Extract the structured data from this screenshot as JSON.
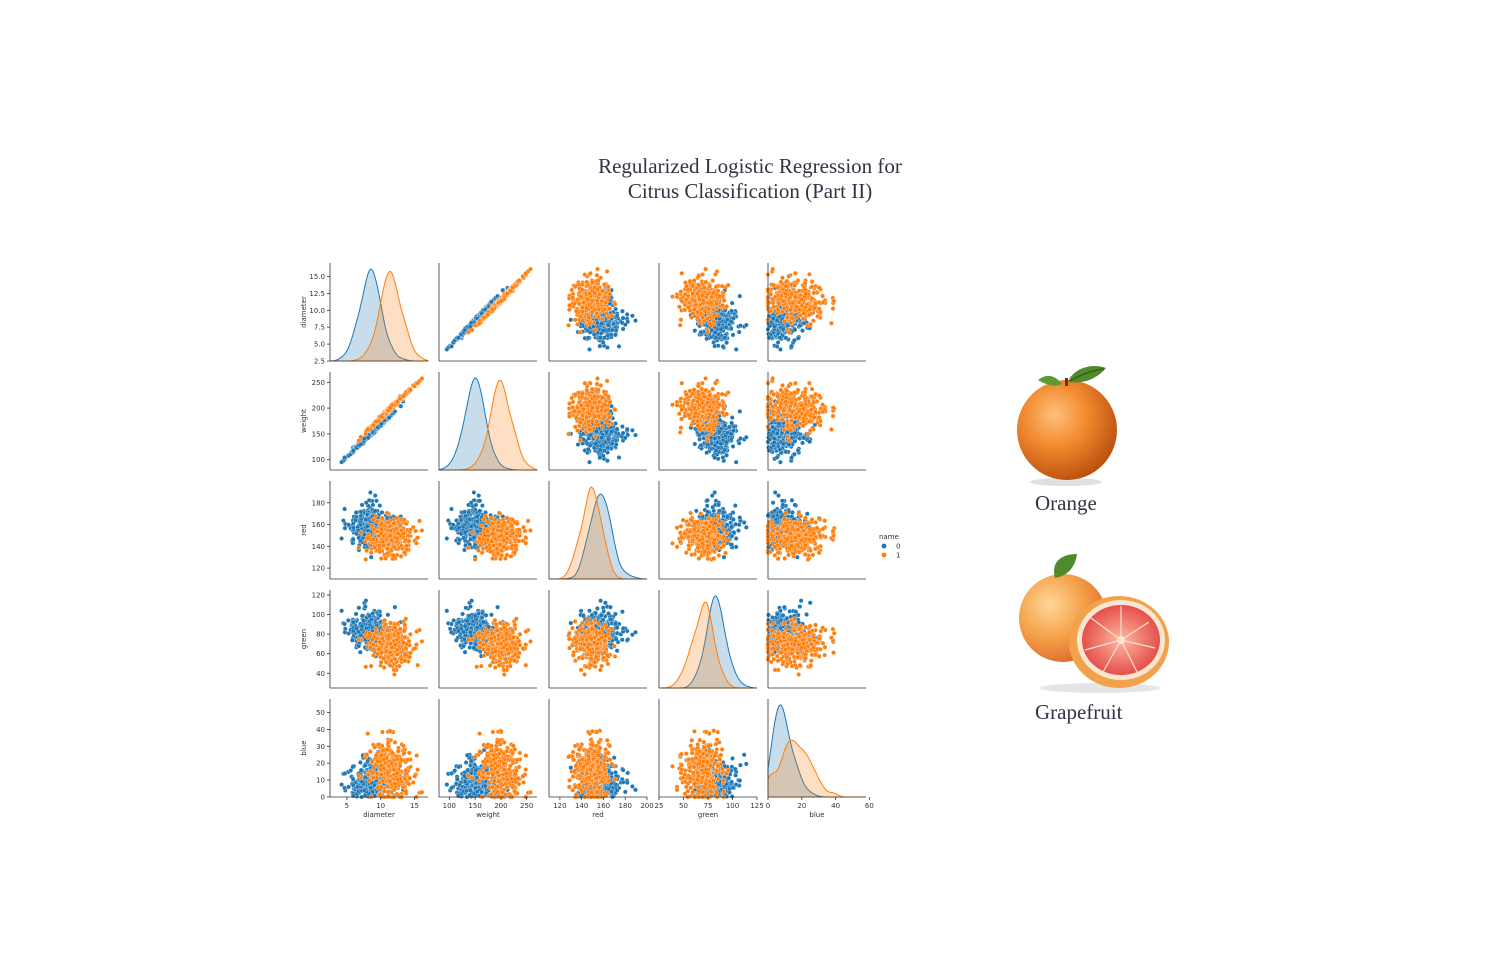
{
  "title_lines": [
    "Regularized Logistic Regression for",
    "Citrus Classification (Part II)"
  ],
  "fruits": {
    "orange_label": "Orange",
    "grapefruit_label": "Grapefruit"
  },
  "colors": {
    "class0": "#1f77b4",
    "class1": "#ff7f0e",
    "text": "#333344"
  },
  "chart_data": {
    "type": "scatter",
    "subtype": "pairplot",
    "variables": [
      "diameter",
      "weight",
      "red",
      "green",
      "blue"
    ],
    "hue_title": "name",
    "hue_levels": [
      "0",
      "1"
    ],
    "diagonal": "kde",
    "axes": {
      "diameter": {
        "lim": [
          2.5,
          17
        ],
        "ticks_y": [
          2.5,
          5.0,
          7.5,
          10.0,
          12.5,
          15.0
        ],
        "tick_labels_y": [
          "2.5",
          "5.0",
          "7.5",
          "10.0",
          "12.5",
          "15.0"
        ],
        "ticks_x": [
          5,
          10,
          15
        ],
        "tick_labels_x": [
          "5",
          "10",
          "15"
        ]
      },
      "weight": {
        "lim": [
          80,
          270
        ],
        "ticks_y": [
          100,
          150,
          200,
          250
        ],
        "tick_labels_y": [
          "100",
          "150",
          "200",
          "250"
        ],
        "ticks_x": [
          100,
          150,
          200,
          250
        ],
        "tick_labels_x": [
          "100",
          "150",
          "200",
          "250"
        ]
      },
      "red": {
        "lim": [
          110,
          200
        ],
        "ticks_y": [
          120,
          140,
          160,
          180
        ],
        "tick_labels_y": [
          "120",
          "140",
          "160",
          "180"
        ],
        "ticks_x": [
          120,
          140,
          160,
          180,
          200
        ],
        "tick_labels_x": [
          "120",
          "140",
          "160",
          "180",
          "200"
        ]
      },
      "green": {
        "lim": [
          25,
          125
        ],
        "ticks_y": [
          40,
          60,
          80,
          100,
          120
        ],
        "tick_labels_y": [
          "40",
          "60",
          "80",
          "100",
          "120"
        ],
        "ticks_x": [
          25,
          50,
          75,
          100,
          125
        ],
        "tick_labels_x": [
          "25",
          "50",
          "75",
          "100",
          "125"
        ]
      },
      "blue": {
        "lim": [
          0,
          58
        ],
        "ticks_y": [
          0,
          10,
          20,
          30,
          40,
          50
        ],
        "tick_labels_y": [
          "0",
          "10",
          "20",
          "30",
          "40",
          "50"
        ],
        "ticks_x": [
          0,
          20,
          40,
          60
        ],
        "tick_labels_x": [
          "0",
          "20",
          "40",
          "60"
        ]
      }
    },
    "class_stats": {
      "0": {
        "diameter": [
          8.5,
          1.6
        ],
        "weight": [
          150,
          20
        ],
        "red": [
          158,
          9
        ],
        "green": [
          83,
          10
        ],
        "blue": [
          8,
          7
        ]
      },
      "1": {
        "diameter": [
          11.5,
          1.6
        ],
        "weight": [
          200,
          20
        ],
        "red": [
          150,
          9
        ],
        "green": [
          70,
          10
        ],
        "blue": [
          16,
          9
        ]
      }
    },
    "series": [
      {
        "name": "0",
        "color": "#1f77b4"
      },
      {
        "name": "1",
        "color": "#ff7f0e"
      }
    ]
  }
}
